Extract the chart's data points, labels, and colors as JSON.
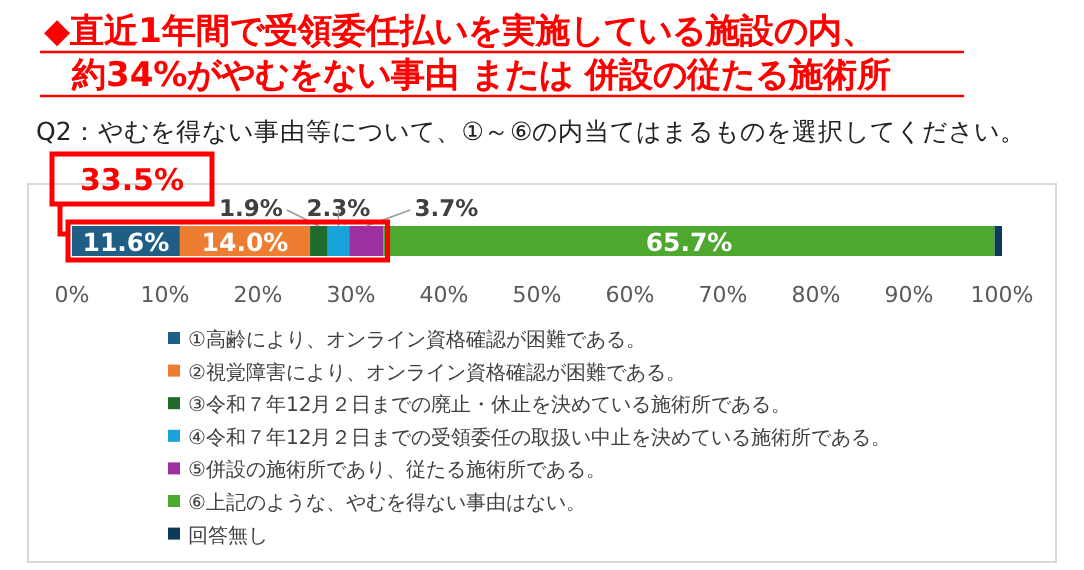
{
  "chart_data": {
    "type": "bar",
    "orientation": "horizontal",
    "stacked": true,
    "title": "◆直近1年間で受領委任払いを実施している施設の内、約34%がやむをない事由 または 併設の従たる施術所",
    "subtitle": "Q2：やむを得ない事由等について、①～⑥の内当てはまるものを選択してください。",
    "annotations": [
      "33.5%"
    ],
    "categories": [
      null
    ],
    "series": [
      {
        "name": "①高齢により、オンライン資格確認が困難である。",
        "color": "#1f5f85",
        "values": [
          11.6
        ],
        "value_labels": [
          "11.6%"
        ]
      },
      {
        "name": "②視覚障害により、オンライン資格確認が困難である。",
        "color": "#ed7d31",
        "values": [
          14.0
        ],
        "value_labels": [
          "14.0%"
        ]
      },
      {
        "name": "③令和７年12月２日までの廃止・休止を決めている施術所である。",
        "color": "#1e6b2a",
        "values": [
          1.9
        ],
        "value_labels": [
          "1.9%"
        ]
      },
      {
        "name": "④令和７年12月２日までの受領委任の取扱い中止を決めている施術所である。",
        "color": "#1aa3d9",
        "values": [
          2.3
        ],
        "value_labels": [
          "2.3%"
        ]
      },
      {
        "name": "⑤併設の施術所であり、従たる施術所である。",
        "color": "#9e2fa0",
        "values": [
          3.7
        ],
        "value_labels": [
          "3.7%"
        ]
      },
      {
        "name": "⑥上記のような、やむを得ない事由はない。",
        "color": "#4ea72e",
        "values": [
          65.7
        ],
        "value_labels": [
          "65.7%"
        ]
      },
      {
        "name": "回答無し",
        "color": "#0e3a5a",
        "values": [
          0.8
        ],
        "value_labels": [
          null
        ]
      }
    ],
    "xlim": [
      0,
      100
    ],
    "xticks": [
      {
        "value": 0,
        "label": "0%"
      },
      {
        "value": 10,
        "label": "10%"
      },
      {
        "value": 20,
        "label": "20%"
      },
      {
        "value": 30,
        "label": "30%"
      },
      {
        "value": 40,
        "label": "40%"
      },
      {
        "value": 50,
        "label": "50%"
      },
      {
        "value": 60,
        "label": "60%"
      },
      {
        "value": 70,
        "label": "70%"
      },
      {
        "value": 80,
        "label": "80%"
      },
      {
        "value": 90,
        "label": "90%"
      },
      {
        "value": 100,
        "label": "100%"
      }
    ],
    "legend": "bottom"
  }
}
